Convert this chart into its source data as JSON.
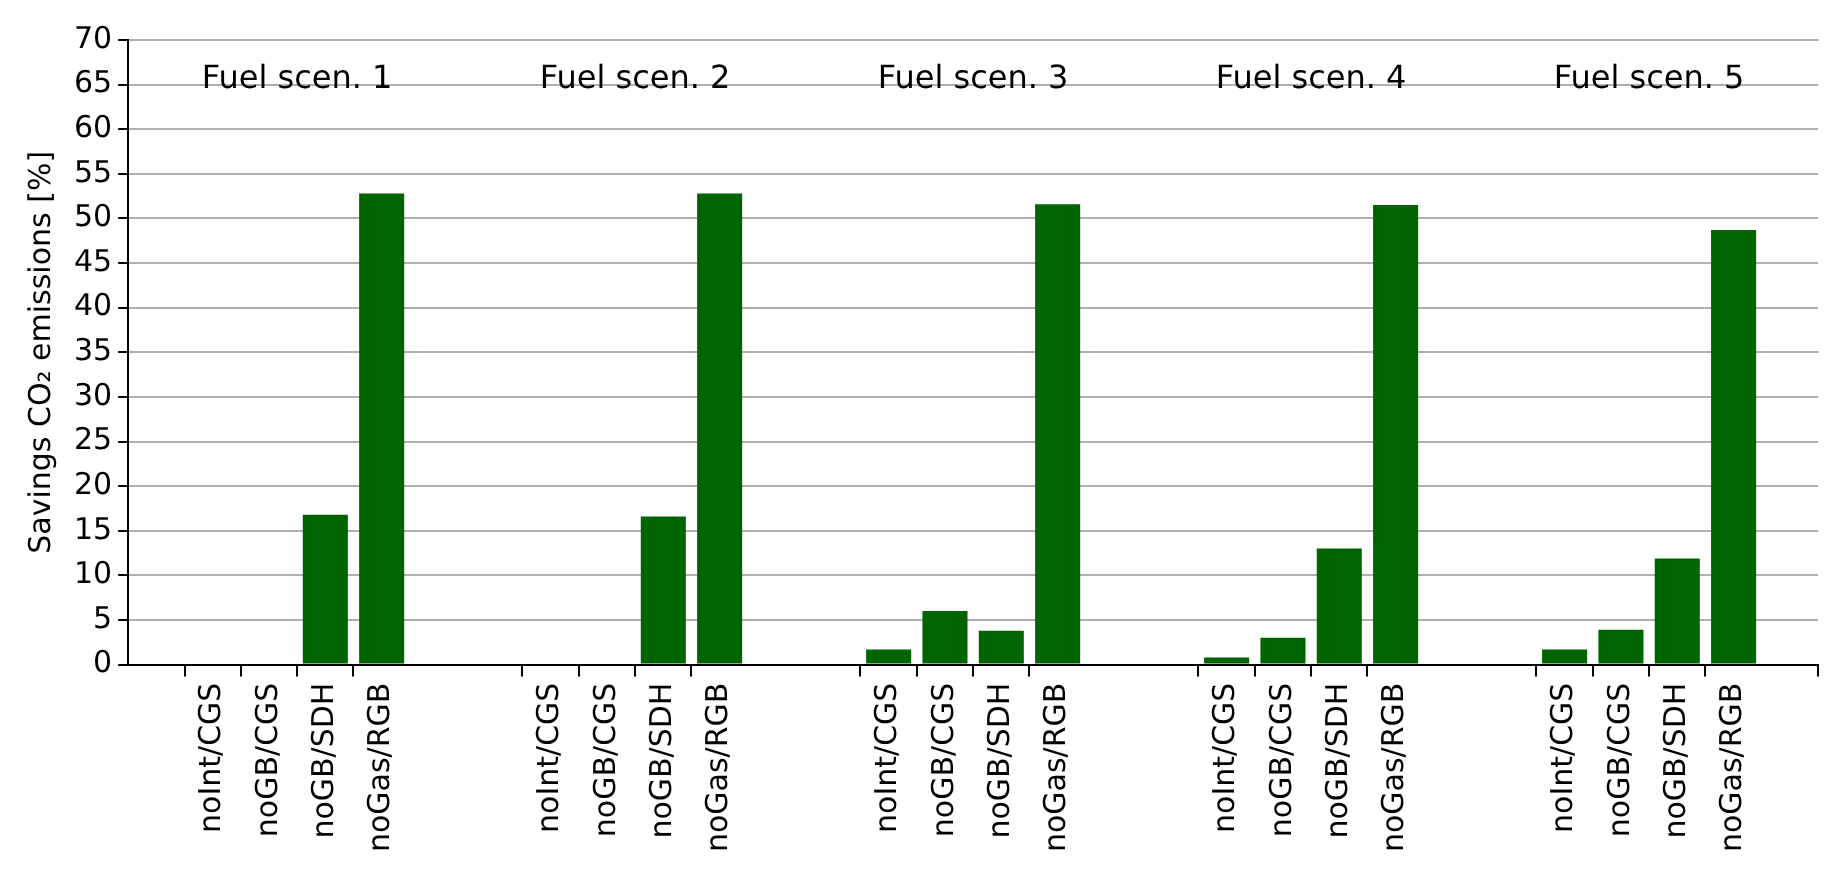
{
  "chart_data": {
    "type": "bar",
    "ylabel": "Savings CO₂ emissions [%]",
    "categories": [
      null,
      "noInt/CGS",
      "noGB/CGS",
      "noGB/SDH",
      "noGas/RGB",
      null,
      null,
      "noInt/CGS",
      "noGB/CGS",
      "noGB/SDH",
      "noGas/RGB",
      null,
      null,
      "noInt/CGS",
      "noGB/CGS",
      "noGB/SDH",
      "noGas/RGB",
      null,
      null,
      "noInt/CGS",
      "noGB/CGS",
      "noGB/SDH",
      "noGas/RGB",
      null,
      null,
      "noInt/CGS",
      "noGB/CGS",
      "noGB/SDH",
      "noGas/RGB",
      null
    ],
    "values": [
      null,
      0,
      0,
      16.8,
      52.8,
      null,
      null,
      0,
      0,
      16.6,
      52.8,
      null,
      null,
      1.7,
      6,
      3.8,
      51.6,
      null,
      null,
      0.8,
      3,
      13,
      51.5,
      null,
      null,
      1.7,
      3.9,
      11.9,
      48.7,
      null
    ],
    "color": "#006400",
    "ylim": [
      0,
      70
    ],
    "yticks": [
      0,
      5,
      10,
      15,
      20,
      25,
      30,
      35,
      40,
      45,
      50,
      55,
      60,
      65,
      70
    ],
    "grid": "y",
    "annotations": [
      "Fuel scen. 1",
      "Fuel scen. 2",
      "Fuel scen. 3",
      "Fuel scen. 4",
      "Fuel scen. 5"
    ]
  }
}
